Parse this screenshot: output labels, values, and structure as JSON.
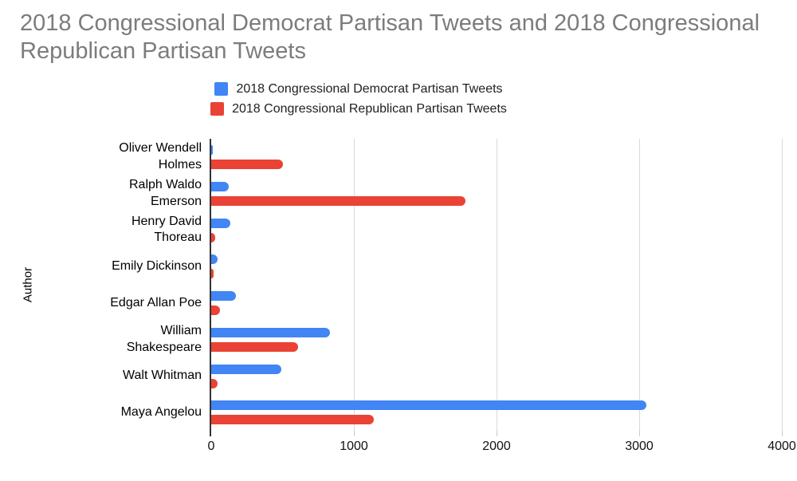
{
  "title": {
    "text": "2018 Congressional Democrat Partisan Tweets and 2018 Congressional Republican Partisan Tweets"
  },
  "legend": {
    "items": [
      {
        "label": "2018 Congressional Democrat Partisan Tweets",
        "color": "#4285F4"
      },
      {
        "label": "2018 Congressional Republican Partisan Tweets",
        "color": "#EA4335"
      }
    ]
  },
  "y_axis": {
    "title": "Author"
  },
  "x_axis": {
    "tick_labels": [
      "0",
      "1000",
      "2000",
      "3000",
      "4000"
    ],
    "max": 4000
  },
  "chart_data": {
    "type": "bar",
    "orientation": "horizontal",
    "title": "2018 Congressional Democrat Partisan Tweets and 2018 Congressional Republican Partisan Tweets",
    "categories": [
      "Oliver Wendell Holmes",
      "Ralph Waldo Emerson",
      "Henry David Thoreau",
      "Emily Dickinson",
      "Edgar Allan Poe",
      "William Shakespeare",
      "Walt Whitman",
      "Maya Angelou"
    ],
    "series": [
      {
        "name": "2018 Congressional Democrat Partisan Tweets",
        "color": "#4285F4",
        "values": [
          5,
          125,
          135,
          45,
          175,
          830,
          490,
          3050
        ]
      },
      {
        "name": "2018 Congressional Republican Partisan Tweets",
        "color": "#EA4335",
        "values": [
          500,
          1780,
          30,
          15,
          60,
          610,
          45,
          1140
        ]
      }
    ],
    "xlabel": "",
    "ylabel": "Author",
    "xlim": [
      0,
      4000
    ],
    "x_ticks": [
      0,
      1000,
      2000,
      3000,
      4000
    ],
    "grid": true,
    "legend_position": "top"
  },
  "colors": {
    "title_text": "#7c7c7c",
    "axis_text": "#111111",
    "gridline": "#dadada",
    "axis_line": "#333333",
    "background": "#ffffff"
  }
}
